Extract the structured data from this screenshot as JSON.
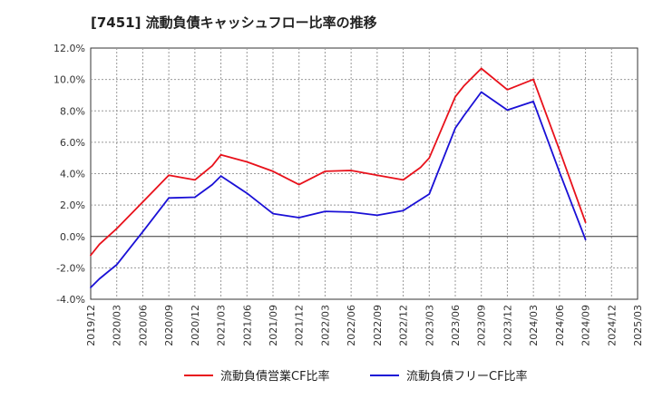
{
  "chart_data": {
    "type": "line",
    "title": "[7451]  流動負債キャッシュフロー比率の推移",
    "xlabel": "",
    "ylabel": "",
    "ylim": [
      -4.0,
      12.0
    ],
    "yticks": [
      -4.0,
      -2.0,
      0.0,
      2.0,
      4.0,
      6.0,
      8.0,
      10.0,
      12.0
    ],
    "ytick_labels": [
      "-4.0%",
      "-2.0%",
      "0.0%",
      "2.0%",
      "4.0%",
      "6.0%",
      "8.0%",
      "10.0%",
      "12.0%"
    ],
    "categories": [
      "2019/12",
      "2020/03",
      "2020/06",
      "2020/09",
      "2020/12",
      "2021/03",
      "2021/06",
      "2021/09",
      "2021/12",
      "2022/03",
      "2022/06",
      "2022/09",
      "2022/12",
      "2023/03",
      "2023/06",
      "2023/09",
      "2023/12",
      "2024/03",
      "2024/06",
      "2024/09",
      "2024/12",
      "2025/03"
    ],
    "grid": true,
    "legend_position": "bottom",
    "series": [
      {
        "name": "流動負債営業CF比率",
        "color": "#e8111b",
        "points": [
          [
            "2019/12",
            -1.2
          ],
          [
            "2020/01",
            -0.5
          ],
          [
            "2020/03",
            0.5
          ],
          [
            "2020/06",
            2.2
          ],
          [
            "2020/09",
            3.9
          ],
          [
            "2020/12",
            3.6
          ],
          [
            "2021/02",
            4.5
          ],
          [
            "2021/03",
            5.2
          ],
          [
            "2021/06",
            4.75
          ],
          [
            "2021/09",
            4.15
          ],
          [
            "2021/12",
            3.3
          ],
          [
            "2022/03",
            4.15
          ],
          [
            "2022/06",
            4.2
          ],
          [
            "2022/09",
            3.9
          ],
          [
            "2022/12",
            3.6
          ],
          [
            "2023/02",
            4.4
          ],
          [
            "2023/03",
            5.0
          ],
          [
            "2023/06",
            8.9
          ],
          [
            "2023/07",
            9.6
          ],
          [
            "2023/09",
            10.7
          ],
          [
            "2023/12",
            9.35
          ],
          [
            "2024/03",
            10.0
          ],
          [
            "2024/06",
            5.5
          ],
          [
            "2024/09",
            0.9
          ]
        ]
      },
      {
        "name": "流動負債フリーCF比率",
        "color": "#1a10d6",
        "points": [
          [
            "2019/12",
            -3.25
          ],
          [
            "2020/01",
            -2.7
          ],
          [
            "2020/03",
            -1.8
          ],
          [
            "2020/06",
            0.3
          ],
          [
            "2020/09",
            2.45
          ],
          [
            "2020/12",
            2.5
          ],
          [
            "2021/02",
            3.3
          ],
          [
            "2021/03",
            3.85
          ],
          [
            "2021/06",
            2.75
          ],
          [
            "2021/09",
            1.45
          ],
          [
            "2021/12",
            1.2
          ],
          [
            "2022/03",
            1.6
          ],
          [
            "2022/06",
            1.55
          ],
          [
            "2022/09",
            1.35
          ],
          [
            "2022/12",
            1.65
          ],
          [
            "2023/03",
            2.7
          ],
          [
            "2023/06",
            6.9
          ],
          [
            "2023/07",
            7.7
          ],
          [
            "2023/09",
            9.2
          ],
          [
            "2023/12",
            8.05
          ],
          [
            "2024/03",
            8.6
          ],
          [
            "2024/06",
            4.1
          ],
          [
            "2024/09",
            -0.2
          ]
        ]
      }
    ]
  }
}
